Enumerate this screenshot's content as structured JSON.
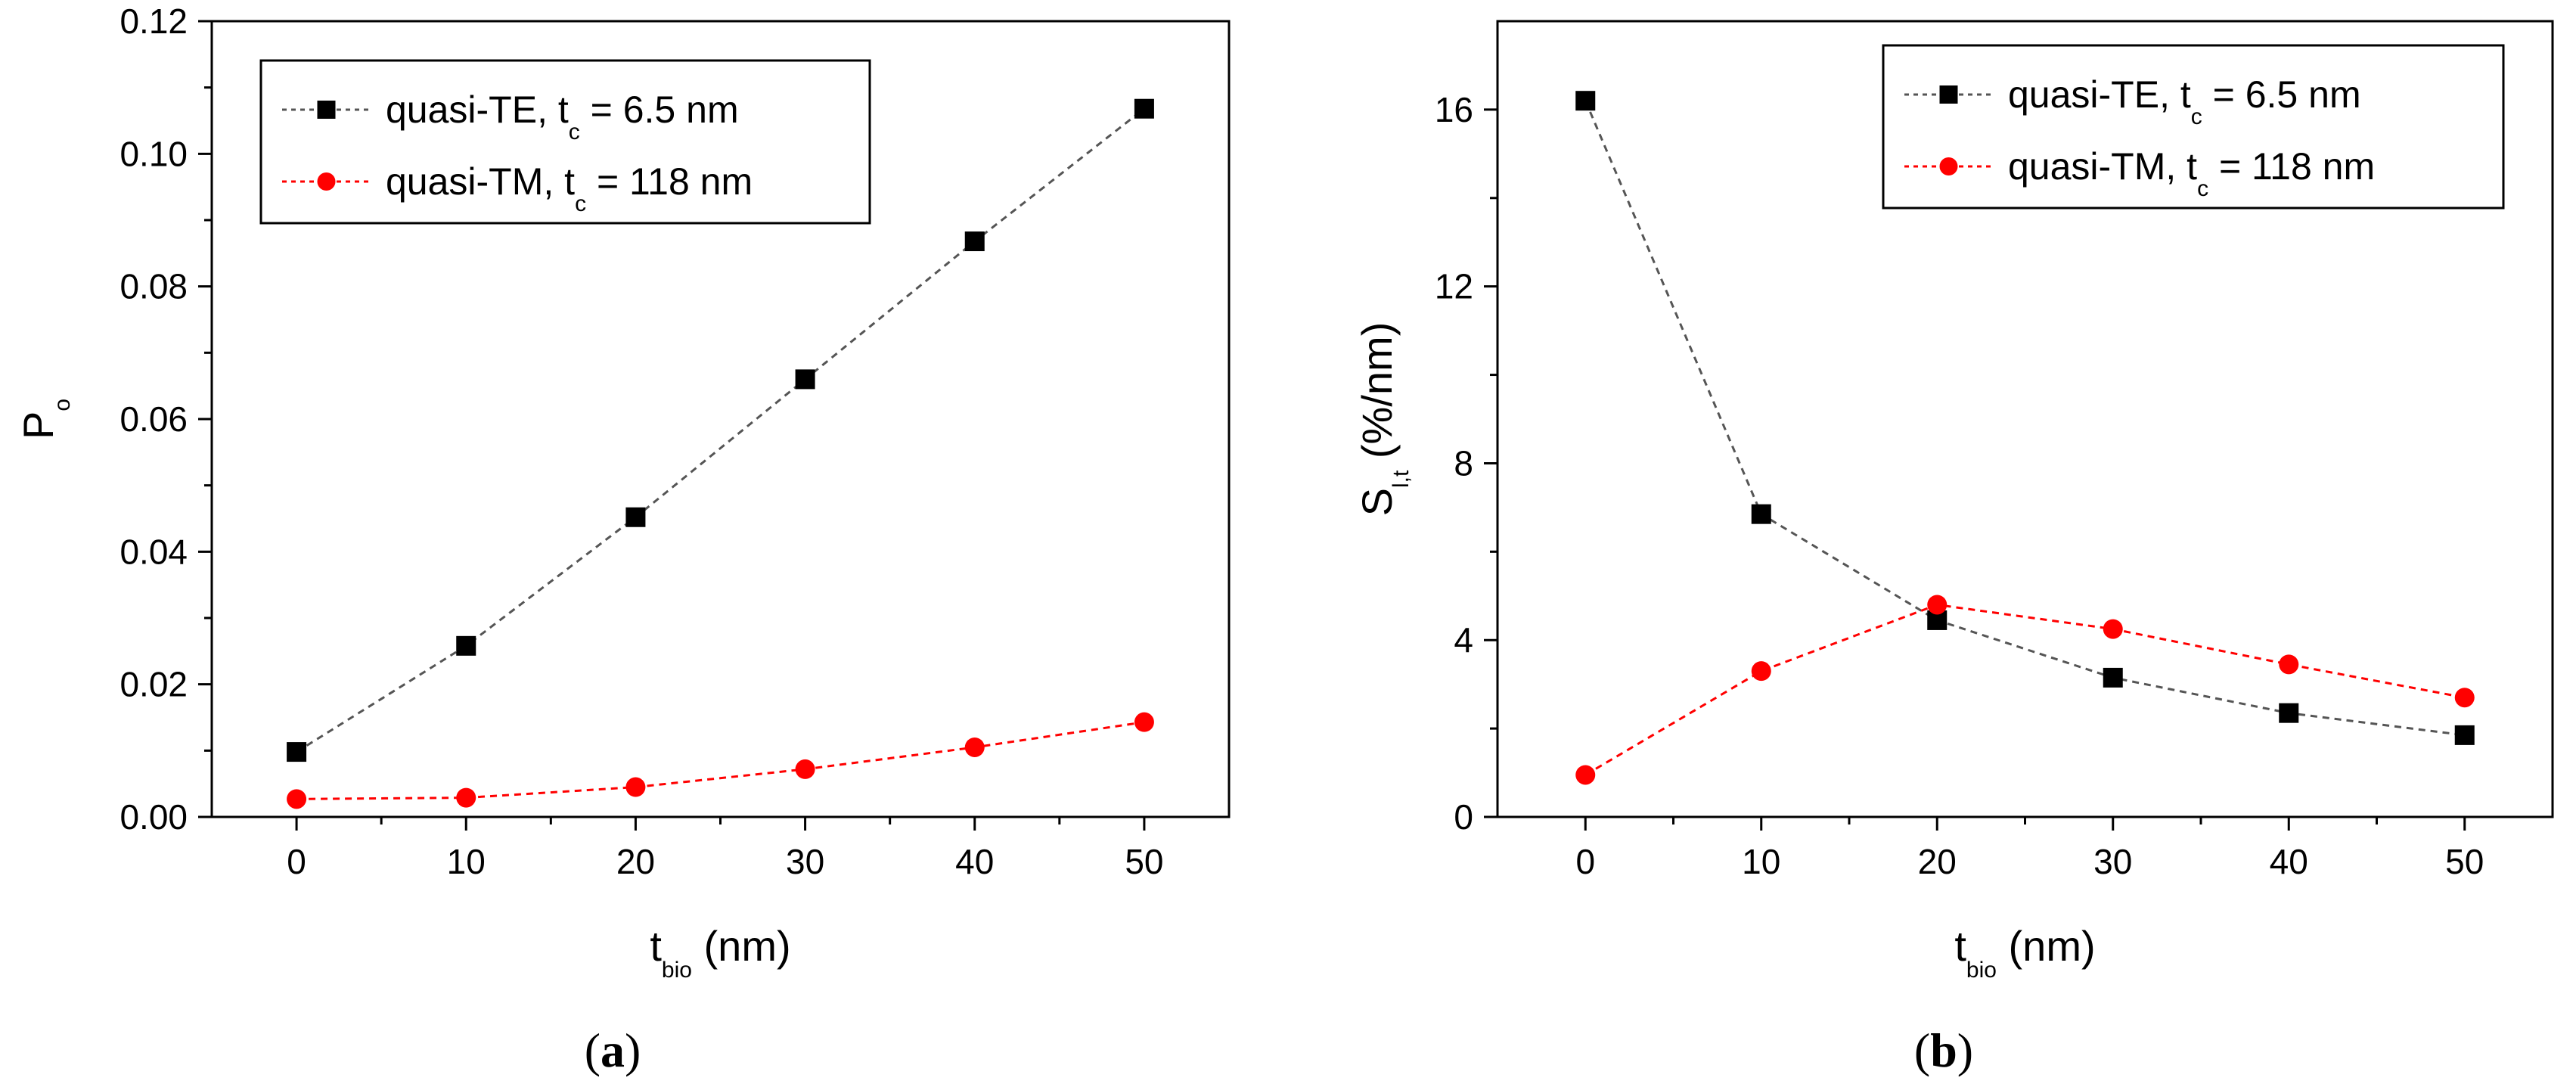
{
  "chart_data": [
    {
      "type": "line",
      "panel": "a",
      "caption": {
        "open": "(",
        "letter": "a",
        "close": ")"
      },
      "ylabel": {
        "main": "P",
        "sub": "o"
      },
      "xlabel": {
        "main": "t",
        "sub": "bio",
        "unit": "(nm)"
      },
      "xlim": [
        -5,
        55
      ],
      "ylim": [
        0,
        0.12
      ],
      "xticks": [
        0,
        10,
        20,
        30,
        40,
        50
      ],
      "xtick_labels": [
        "0",
        "10",
        "20",
        "30",
        "40",
        "50"
      ],
      "yticks": [
        0,
        0.02,
        0.04,
        0.06,
        0.08,
        0.1,
        0.12
      ],
      "ytick_labels": [
        "0.00",
        "0.02",
        "0.04",
        "0.06",
        "0.08",
        "0.10",
        "0.12"
      ],
      "legend_position": "top-left",
      "x": [
        0,
        10,
        20,
        30,
        40,
        50
      ],
      "series": [
        {
          "name": "quasi-TE, t_c = 6.5 nm",
          "label": {
            "pre": "quasi-TE, t",
            "sub": "c",
            "post": " = 6.5 nm"
          },
          "marker": "square",
          "color": "#000000",
          "line_color": "#555555",
          "values": [
            0.0098,
            0.0258,
            0.0452,
            0.066,
            0.0868,
            0.1068
          ]
        },
        {
          "name": "quasi-TM, t_c = 118 nm",
          "label": {
            "pre": "quasi-TM, t",
            "sub": "c",
            "post": " = 118 nm"
          },
          "marker": "circle",
          "color": "#ff0000",
          "line_color": "#ff0000",
          "values": [
            0.0027,
            0.0029,
            0.0045,
            0.0072,
            0.0105,
            0.0143
          ]
        }
      ]
    },
    {
      "type": "line",
      "panel": "b",
      "caption": {
        "open": "(",
        "letter": "b",
        "close": ")"
      },
      "ylabel": {
        "main": "S",
        "sub": "l,t",
        "unit": "(%/nm)"
      },
      "xlabel": {
        "main": "t",
        "sub": "bio",
        "unit": "(nm)"
      },
      "xlim": [
        -5,
        55
      ],
      "ylim": [
        0,
        18
      ],
      "xticks": [
        0,
        10,
        20,
        30,
        40,
        50
      ],
      "xtick_labels": [
        "0",
        "10",
        "20",
        "30",
        "40",
        "50"
      ],
      "yticks": [
        0,
        4,
        8,
        12,
        16
      ],
      "ytick_labels": [
        "0",
        "4",
        "8",
        "12",
        "16"
      ],
      "legend_position": "top-right",
      "x": [
        0,
        10,
        20,
        30,
        40,
        50
      ],
      "series": [
        {
          "name": "quasi-TE, t_c = 6.5 nm",
          "label": {
            "pre": "quasi-TE, t",
            "sub": "c",
            "post": " = 6.5 nm"
          },
          "marker": "square",
          "color": "#000000",
          "line_color": "#555555",
          "values": [
            16.2,
            6.85,
            4.45,
            3.15,
            2.35,
            1.85
          ]
        },
        {
          "name": "quasi-TM, t_c = 118 nm",
          "label": {
            "pre": "quasi-TM, t",
            "sub": "c",
            "post": " = 118 nm"
          },
          "marker": "circle",
          "color": "#ff0000",
          "line_color": "#ff0000",
          "values": [
            0.95,
            3.3,
            4.8,
            4.25,
            3.45,
            2.7
          ]
        }
      ]
    }
  ]
}
